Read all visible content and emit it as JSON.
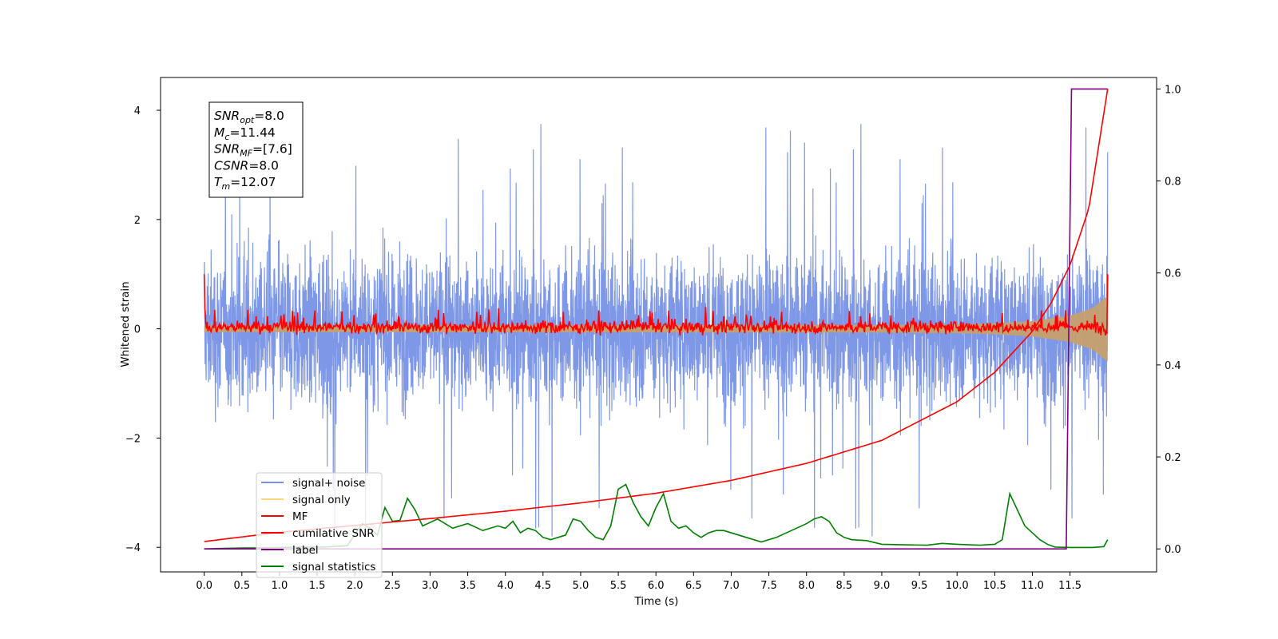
{
  "chart_data": {
    "type": "line",
    "xlabel": "Time (s)",
    "ylabel": "Whitened strain",
    "xlim": [
      -0.58,
      12.65
    ],
    "ylim": [
      -4.45,
      4.6
    ],
    "y2lim": [
      -0.05,
      1.025
    ],
    "x_ticks": [
      0.0,
      0.5,
      1.0,
      1.5,
      2.0,
      2.5,
      3.0,
      3.5,
      4.0,
      4.5,
      5.0,
      5.5,
      6.0,
      6.5,
      7.0,
      7.5,
      8.0,
      8.5,
      9.0,
      9.5,
      10.0,
      10.5,
      11.0,
      11.5
    ],
    "x_tick_labels": [
      "0.0",
      "0.5",
      "1.0",
      "1.5",
      "2.0",
      "2.5",
      "3.0",
      "3.5",
      "4.0",
      "4.5",
      "5.0",
      "5.5",
      "6.0",
      "6.5",
      "7.0",
      "7.5",
      "8.0",
      "8.5",
      "9.0",
      "9.5",
      "10.0",
      "10.5",
      "11.0",
      "11.5"
    ],
    "y_ticks": [
      -4,
      -2,
      0,
      2,
      4
    ],
    "y_tick_labels": [
      "−4",
      "−2",
      "0",
      "2",
      "4"
    ],
    "y2_ticks": [
      0.0,
      0.2,
      0.4,
      0.6,
      0.8,
      1.0
    ],
    "y2_tick_labels": [
      "0.0",
      "0.2",
      "0.4",
      "0.6",
      "0.8",
      "1.0"
    ],
    "grid": false,
    "legend": {
      "placement": "lower-left",
      "entries": [
        {
          "label": "signal+ noise",
          "color": "#7792e6"
        },
        {
          "label": "signal only",
          "color": "#ffd580"
        },
        {
          "label": "MF",
          "color": "#ff0000"
        },
        {
          "label": "cumilative SNR",
          "color": "#ff0000"
        },
        {
          "label": "label",
          "color": "#800080"
        },
        {
          "label": "signal statistics",
          "color": "#008000"
        }
      ]
    },
    "info_box": [
      {
        "base": "SNR",
        "sub": "opt",
        "value": "=8.0"
      },
      {
        "base": "M",
        "sub": "c",
        "value": "=11.44"
      },
      {
        "base": "SNR",
        "sub": "MF",
        "value": "=[7.6]"
      },
      {
        "base": "CSNR",
        "sub": "",
        "value": "=8.0"
      },
      {
        "base": "T",
        "sub": "m",
        "value": "=12.07"
      }
    ],
    "series": [
      {
        "name": "signal+ noise",
        "axis": "left",
        "color": "#7792e6",
        "style": "dense noise band",
        "x_range": [
          0.0,
          12.0
        ],
        "core_band": [
          -1.3,
          1.3
        ],
        "max": 4.15,
        "min": -3.8
      },
      {
        "name": "signal only",
        "axis": "left",
        "color": "#c7a06e",
        "style": "chirp envelope",
        "x": [
          0.0,
          9.0,
          10.0,
          10.5,
          11.0,
          11.5,
          11.8,
          12.0
        ],
        "amplitude": [
          0.06,
          0.07,
          0.08,
          0.1,
          0.14,
          0.24,
          0.38,
          0.6
        ]
      },
      {
        "name": "MF",
        "axis": "left",
        "color": "#ff0000",
        "style": "noisy line near zero",
        "x_range": [
          0.0,
          12.0
        ],
        "start_value": 1.0,
        "end_value": 1.0,
        "typical_range": [
          -0.2,
          0.35
        ]
      },
      {
        "name": "cumilative SNR",
        "axis": "right",
        "color": "#ff0000",
        "x": [
          0.0,
          1.0,
          2.0,
          3.0,
          4.0,
          5.0,
          6.0,
          7.0,
          8.0,
          9.0,
          10.0,
          10.5,
          11.0,
          11.25,
          11.5,
          11.75,
          12.0
        ],
        "values": [
          0.016,
          0.036,
          0.051,
          0.066,
          0.082,
          0.1,
          0.121,
          0.149,
          0.186,
          0.236,
          0.32,
          0.384,
          0.473,
          0.535,
          0.617,
          0.74,
          1.0
        ]
      },
      {
        "name": "label",
        "axis": "right",
        "color": "#800080",
        "x": [
          0.0,
          11.45,
          11.52,
          12.0
        ],
        "values": [
          0.0,
          0.0,
          1.0,
          1.0
        ]
      },
      {
        "name": "signal statistics",
        "axis": "right",
        "color": "#008000",
        "x": [
          0.0,
          0.2,
          0.5,
          0.7,
          1.0,
          1.3,
          1.6,
          1.9,
          2.1,
          2.2,
          2.3,
          2.4,
          2.5,
          2.6,
          2.7,
          2.8,
          2.9,
          3.1,
          3.3,
          3.5,
          3.7,
          3.9,
          4.0,
          4.1,
          4.2,
          4.3,
          4.4,
          4.5,
          4.6,
          4.7,
          4.8,
          4.9,
          5.0,
          5.1,
          5.2,
          5.3,
          5.4,
          5.5,
          5.6,
          5.7,
          5.8,
          5.9,
          6.0,
          6.1,
          6.2,
          6.3,
          6.4,
          6.5,
          6.6,
          6.7,
          6.8,
          6.9,
          7.0,
          7.2,
          7.4,
          7.6,
          7.8,
          8.0,
          8.1,
          8.2,
          8.3,
          8.4,
          8.5,
          8.6,
          8.8,
          9.0,
          9.3,
          9.6,
          9.8,
          10.0,
          10.3,
          10.5,
          10.6,
          10.7,
          10.8,
          10.9,
          11.0,
          11.1,
          11.2,
          11.3,
          11.5,
          11.8,
          11.95,
          12.0
        ],
        "values": [
          0.0,
          0.001,
          0.002,
          0.002,
          0.003,
          0.004,
          0.004,
          0.007,
          0.055,
          0.045,
          0.03,
          0.09,
          0.06,
          0.062,
          0.11,
          0.085,
          0.05,
          0.065,
          0.045,
          0.055,
          0.04,
          0.05,
          0.045,
          0.06,
          0.035,
          0.045,
          0.04,
          0.025,
          0.02,
          0.025,
          0.03,
          0.065,
          0.06,
          0.04,
          0.025,
          0.02,
          0.05,
          0.13,
          0.14,
          0.1,
          0.07,
          0.05,
          0.09,
          0.12,
          0.06,
          0.045,
          0.05,
          0.035,
          0.025,
          0.035,
          0.04,
          0.04,
          0.035,
          0.025,
          0.015,
          0.025,
          0.04,
          0.055,
          0.065,
          0.07,
          0.06,
          0.035,
          0.025,
          0.02,
          0.018,
          0.01,
          0.009,
          0.008,
          0.012,
          0.01,
          0.008,
          0.01,
          0.02,
          0.12,
          0.085,
          0.05,
          0.035,
          0.02,
          0.01,
          0.004,
          0.003,
          0.003,
          0.005,
          0.02
        ]
      }
    ]
  }
}
